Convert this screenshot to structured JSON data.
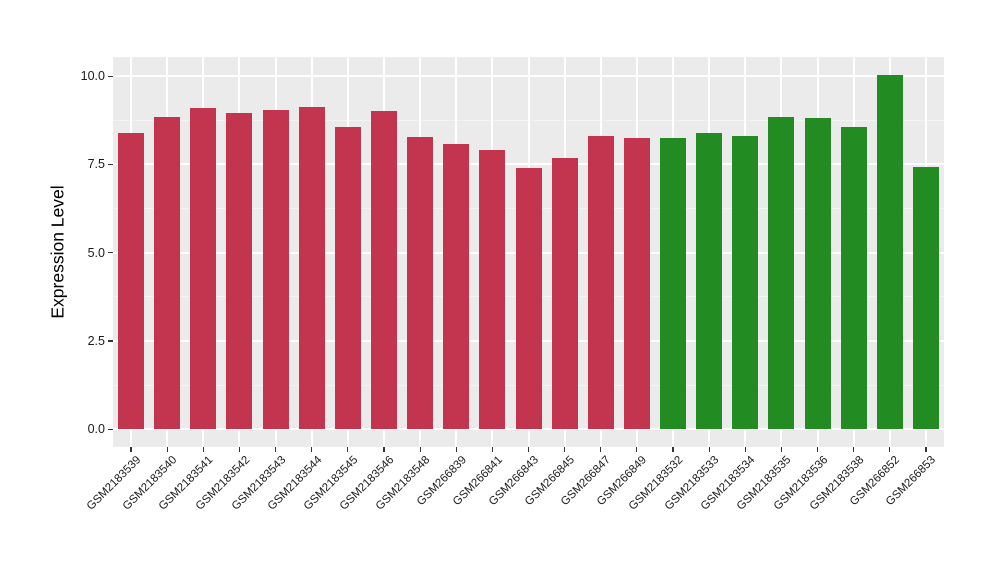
{
  "figure": {
    "background": "#FFFFFF",
    "panel_background": "#EBEBEB",
    "gridline_major_color": "#FFFFFF",
    "gridline_minor_color": "#F4F4F4",
    "tick_color": "#333333",
    "axis_text_color": "#1A1A1A",
    "axis_title_color": "#000000"
  },
  "chart_data": {
    "type": "bar",
    "title": "",
    "xlabel": "",
    "ylabel": "Expression Level",
    "ylim": [
      0,
      10.5
    ],
    "yticks": [
      0,
      2.5,
      5,
      7.5,
      10
    ],
    "ytick_labels": [
      "0.0",
      "2.5",
      "5.0",
      "7.5",
      "10.0"
    ],
    "yminor": [
      1.25,
      3.75,
      6.25,
      8.75
    ],
    "grid": "on",
    "legend": "none",
    "categories": [
      "GSM2183539",
      "GSM2183540",
      "GSM2183541",
      "GSM2183542",
      "GSM2183543",
      "GSM2183544",
      "GSM2183545",
      "GSM2183546",
      "GSM2183548",
      "GSM266839",
      "GSM266841",
      "GSM266843",
      "GSM266845",
      "GSM266847",
      "GSM266849",
      "GSM2183532",
      "GSM2183533",
      "GSM2183534",
      "GSM2183535",
      "GSM2183536",
      "GSM2183538",
      "GSM266852",
      "GSM266853"
    ],
    "values": [
      8.4,
      8.85,
      9.1,
      8.97,
      9.05,
      9.12,
      8.57,
      9.01,
      8.27,
      8.08,
      7.9,
      7.4,
      7.67,
      8.3,
      8.25,
      8.26,
      8.38,
      8.31,
      8.83,
      8.82,
      8.56,
      10.04,
      7.42
    ],
    "groups": [
      "red",
      "red",
      "red",
      "red",
      "red",
      "red",
      "red",
      "red",
      "red",
      "red",
      "red",
      "red",
      "red",
      "red",
      "red",
      "green",
      "green",
      "green",
      "green",
      "green",
      "green",
      "green",
      "green"
    ],
    "palette": {
      "red": "#C3344F",
      "green": "#228B22"
    }
  }
}
